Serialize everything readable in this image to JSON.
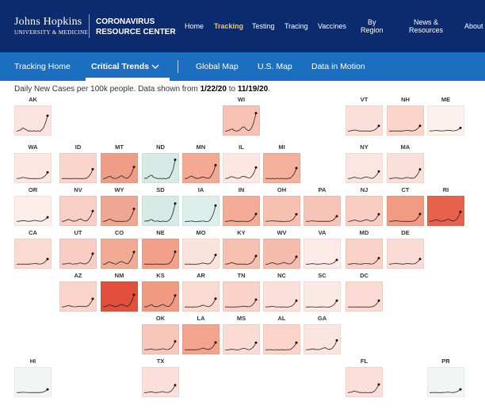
{
  "header": {
    "logo_title": "Johns Hopkins",
    "logo_subtitle": "UNIVERSITY & MEDICINE",
    "brand_line1": "CORONAVIRUS",
    "brand_line2": "RESOURCE CENTER",
    "nav": [
      {
        "label": "Home",
        "active": false
      },
      {
        "label": "Tracking",
        "active": true
      },
      {
        "label": "Testing",
        "active": false
      },
      {
        "label": "Tracing",
        "active": false
      },
      {
        "label": "Vaccines",
        "active": false
      },
      {
        "label": "By\nRegion",
        "active": false
      },
      {
        "label": "News &\nResources",
        "active": false
      },
      {
        "label": "About",
        "active": false
      }
    ]
  },
  "subnav": {
    "items": [
      {
        "label": "Tracking Home",
        "active": false
      },
      {
        "label": "Critical Trends",
        "active": true
      },
      {
        "label": "Global Map",
        "active": false
      },
      {
        "label": "U.S. Map",
        "active": false
      },
      {
        "label": "Data in Motion",
        "active": false
      }
    ],
    "dropdown_icon": "chevron-down-icon"
  },
  "caption": {
    "prefix": "Daily New Cases per 100k people. Data shown from ",
    "start": "1/22/20",
    "to": " to ",
    "end": "11/19/20",
    "suffix": "."
  },
  "colors": {
    "header_bg": "#0c2b6f",
    "subnav_bg": "#1c6fc0",
    "active_nav": "#f2c94c",
    "tile_high": "#d9513f",
    "tile_decline": "#d3e8e4"
  },
  "states": [
    {
      "code": "AK",
      "color": "#fbe4df",
      "peak": 0.75
    },
    {
      "code": "WI",
      "color": "#f7c1b3",
      "peak": 0.85
    },
    {
      "code": "VT",
      "color": "#fbe0da",
      "peak": 0.25
    },
    {
      "code": "NH",
      "color": "#fbd4ca",
      "peak": 0.25
    },
    {
      "code": "ME",
      "color": "#fdf1ee",
      "peak": 0.15
    },
    {
      "code": "WA",
      "color": "#fce7e2",
      "peak": 0.3
    },
    {
      "code": "ID",
      "color": "#fad5cc",
      "peak": 0.45
    },
    {
      "code": "MT",
      "color": "#ef9d86",
      "peak": 0.55
    },
    {
      "code": "ND",
      "color": "#d6ebe6",
      "peak": 0.9
    },
    {
      "code": "MN",
      "color": "#f4a993",
      "peak": 0.65
    },
    {
      "code": "IL",
      "color": "#fde7e2",
      "peak": 0.55
    },
    {
      "code": "MI",
      "color": "#f4b09d",
      "peak": 0.5
    },
    {
      "code": "NY",
      "color": "#fce6e1",
      "peak": 0.35
    },
    {
      "code": "MA",
      "color": "#fbe0d9",
      "peak": 0.45
    },
    {
      "code": "OR",
      "color": "#fdeeea",
      "peak": 0.2
    },
    {
      "code": "NV",
      "color": "#f8cfc4",
      "peak": 0.5
    },
    {
      "code": "WY",
      "color": "#f0a791",
      "peak": 0.6
    },
    {
      "code": "SD",
      "color": "#d6ebe6",
      "peak": 0.85
    },
    {
      "code": "IA",
      "color": "#dcefeb",
      "peak": 0.75
    },
    {
      "code": "IN",
      "color": "#f4ac96",
      "peak": 0.35
    },
    {
      "code": "OH",
      "color": "#f7c1b2",
      "peak": 0.35
    },
    {
      "code": "PA",
      "color": "#f7c4b7",
      "peak": 0.25
    },
    {
      "code": "NJ",
      "color": "#f9cdc2",
      "peak": 0.35
    },
    {
      "code": "CT",
      "color": "#f19b82",
      "peak": 0.35
    },
    {
      "code": "RI",
      "color": "#e8614b",
      "peak": 0.45
    },
    {
      "code": "CA",
      "color": "#fbdad2",
      "peak": 0.25
    },
    {
      "code": "UT",
      "color": "#f9cdc1",
      "peak": 0.5
    },
    {
      "code": "CO",
      "color": "#f3aa95",
      "peak": 0.6
    },
    {
      "code": "NE",
      "color": "#f2a08a",
      "peak": 0.6
    },
    {
      "code": "MO",
      "color": "#fbe3dd",
      "peak": 0.45
    },
    {
      "code": "KY",
      "color": "#f7bfb0",
      "peak": 0.4
    },
    {
      "code": "WV",
      "color": "#f6bcad",
      "peak": 0.35
    },
    {
      "code": "VA",
      "color": "#fde9e5",
      "peak": 0.2
    },
    {
      "code": "MD",
      "color": "#fad1c7",
      "peak": 0.3
    },
    {
      "code": "DE",
      "color": "#fbdcd5",
      "peak": 0.25
    },
    {
      "code": "AZ",
      "color": "#fad4ca",
      "peak": 0.4
    },
    {
      "code": "NM",
      "color": "#e2503d",
      "peak": 0.6
    },
    {
      "code": "KS",
      "color": "#f09a82",
      "peak": 0.55
    },
    {
      "code": "AR",
      "color": "#fbdad2",
      "peak": 0.4
    },
    {
      "code": "TN",
      "color": "#fad2c8",
      "peak": 0.35
    },
    {
      "code": "NC",
      "color": "#fbe0d9",
      "peak": 0.3
    },
    {
      "code": "SC",
      "color": "#fde9e4",
      "peak": 0.3
    },
    {
      "code": "DC",
      "color": "#fbdad3",
      "peak": 0.3
    },
    {
      "code": "OK",
      "color": "#f8c7ba",
      "peak": 0.4
    },
    {
      "code": "LA",
      "color": "#f3a38e",
      "peak": 0.35
    },
    {
      "code": "MS",
      "color": "#fbdcd4",
      "peak": 0.35
    },
    {
      "code": "AL",
      "color": "#fad3c9",
      "peak": 0.35
    },
    {
      "code": "GA",
      "color": "#fce5e0",
      "peak": 0.45
    },
    {
      "code": "HI",
      "color": "#f1f5f4",
      "peak": 0.15
    },
    {
      "code": "TX",
      "color": "#fbdfd8",
      "peak": 0.35
    },
    {
      "code": "FL",
      "color": "#fbdfd8",
      "peak": 0.4
    },
    {
      "code": "PR",
      "color": "#f1f6f5",
      "peak": 0.15
    }
  ]
}
